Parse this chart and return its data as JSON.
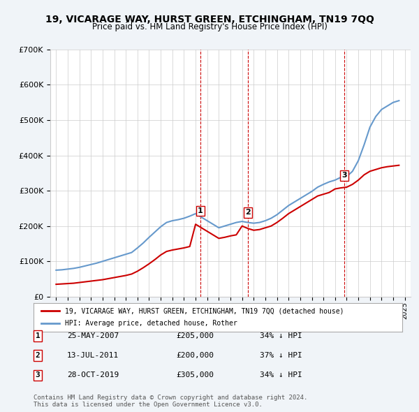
{
  "title": "19, VICARAGE WAY, HURST GREEN, ETCHINGHAM, TN19 7QQ",
  "subtitle": "Price paid vs. HM Land Registry's House Price Index (HPI)",
  "legend_label_red": "19, VICARAGE WAY, HURST GREEN, ETCHINGHAM, TN19 7QQ (detached house)",
  "legend_label_blue": "HPI: Average price, detached house, Rother",
  "footer": "Contains HM Land Registry data © Crown copyright and database right 2024.\nThis data is licensed under the Open Government Licence v3.0.",
  "transactions": [
    {
      "num": 1,
      "date": "25-MAY-2007",
      "price": "£205,000",
      "pct": "34% ↓ HPI",
      "year": 2007.4
    },
    {
      "num": 2,
      "date": "13-JUL-2011",
      "price": "£200,000",
      "pct": "37% ↓ HPI",
      "year": 2011.5
    },
    {
      "num": 3,
      "date": "28-OCT-2019",
      "price": "£305,000",
      "pct": "34% ↓ HPI",
      "year": 2019.8
    }
  ],
  "hpi_years": [
    1995,
    1995.5,
    1996,
    1996.5,
    1997,
    1997.5,
    1998,
    1998.5,
    1999,
    1999.5,
    2000,
    2000.5,
    2001,
    2001.5,
    2002,
    2002.5,
    2003,
    2003.5,
    2004,
    2004.5,
    2005,
    2005.5,
    2006,
    2006.5,
    2007,
    2007.5,
    2008,
    2008.5,
    2009,
    2009.5,
    2010,
    2010.5,
    2011,
    2011.5,
    2012,
    2012.5,
    2013,
    2013.5,
    2014,
    2014.5,
    2015,
    2015.5,
    2016,
    2016.5,
    2017,
    2017.5,
    2018,
    2018.5,
    2019,
    2019.5,
    2020,
    2020.5,
    2021,
    2021.5,
    2022,
    2022.5,
    2023,
    2023.5,
    2024,
    2024.5
  ],
  "hpi_values": [
    75000,
    76000,
    78000,
    80000,
    83000,
    87000,
    91000,
    95000,
    100000,
    105000,
    110000,
    115000,
    120000,
    125000,
    138000,
    152000,
    168000,
    183000,
    198000,
    210000,
    215000,
    218000,
    222000,
    228000,
    235000,
    225000,
    215000,
    205000,
    195000,
    200000,
    205000,
    210000,
    213000,
    210000,
    208000,
    210000,
    215000,
    222000,
    232000,
    245000,
    258000,
    268000,
    278000,
    288000,
    298000,
    310000,
    318000,
    325000,
    330000,
    338000,
    340000,
    355000,
    385000,
    430000,
    480000,
    510000,
    530000,
    540000,
    550000,
    555000
  ],
  "price_years": [
    1995,
    1995.5,
    1996,
    1996.5,
    1997,
    1997.5,
    1998,
    1998.5,
    1999,
    1999.5,
    2000,
    2000.5,
    2001,
    2001.5,
    2002,
    2002.5,
    2003,
    2003.5,
    2004,
    2004.5,
    2005,
    2005.5,
    2006,
    2006.5,
    2007,
    2007.5,
    2008,
    2008.5,
    2009,
    2009.5,
    2010,
    2010.5,
    2011,
    2011.5,
    2012,
    2012.5,
    2013,
    2013.5,
    2014,
    2014.5,
    2015,
    2015.5,
    2016,
    2016.5,
    2017,
    2017.5,
    2018,
    2018.5,
    2019,
    2019.5,
    2020,
    2020.5,
    2021,
    2021.5,
    2022,
    2022.5,
    2023,
    2023.5,
    2024,
    2024.5
  ],
  "price_values": [
    35000,
    36000,
    37000,
    38000,
    40000,
    42000,
    44000,
    46000,
    48000,
    51000,
    54000,
    57000,
    60000,
    64000,
    72000,
    82000,
    93000,
    105000,
    118000,
    128000,
    132000,
    135000,
    138000,
    142000,
    205000,
    195000,
    185000,
    175000,
    165000,
    168000,
    172000,
    175000,
    200000,
    193000,
    188000,
    190000,
    195000,
    200000,
    210000,
    222000,
    235000,
    245000,
    255000,
    265000,
    275000,
    285000,
    290000,
    295000,
    305000,
    308000,
    310000,
    318000,
    330000,
    345000,
    355000,
    360000,
    365000,
    368000,
    370000,
    372000
  ],
  "vline_years": [
    2007.4,
    2011.5,
    2019.8
  ],
  "ylim": [
    0,
    700000
  ],
  "xlim": [
    1994.5,
    2025.5
  ],
  "yticks": [
    0,
    100000,
    200000,
    300000,
    400000,
    500000,
    600000,
    700000
  ],
  "xticks": [
    1995,
    1996,
    1997,
    1998,
    1999,
    2000,
    2001,
    2002,
    2003,
    2004,
    2005,
    2006,
    2007,
    2008,
    2009,
    2010,
    2011,
    2012,
    2013,
    2014,
    2015,
    2016,
    2017,
    2018,
    2019,
    2020,
    2021,
    2022,
    2023,
    2024,
    2025
  ],
  "red_color": "#cc0000",
  "blue_color": "#6699cc",
  "vline_color": "#cc0000",
  "bg_color": "#f0f4f8",
  "plot_bg": "#ffffff",
  "grid_color": "#cccccc"
}
